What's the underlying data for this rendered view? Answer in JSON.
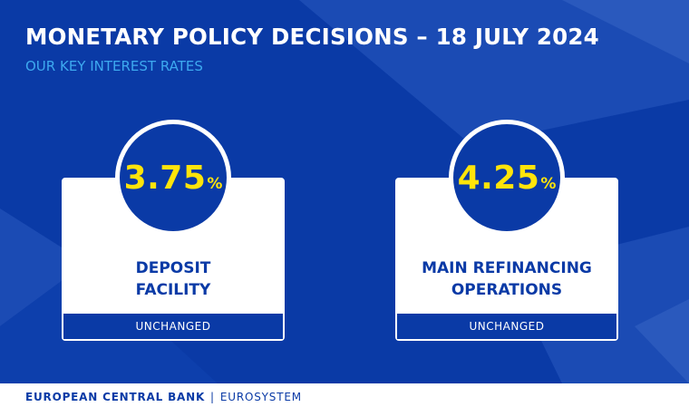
{
  "header": {
    "title": "MONETARY POLICY DECISIONS – 18 JULY 2024",
    "subtitle": "OUR KEY INTEREST RATES"
  },
  "rates": [
    {
      "value": "3.75",
      "unit": "%",
      "label_line1": "DEPOSIT",
      "label_line2": "FACILITY",
      "status": "UNCHANGED"
    },
    {
      "value": "4.25",
      "unit": "%",
      "label_line1": "MAIN REFINANCING",
      "label_line2": "OPERATIONS",
      "status": "UNCHANGED"
    }
  ],
  "footer": {
    "bank": "EUROPEAN CENTRAL BANK",
    "separator": "|",
    "system": "EUROSYSTEM"
  },
  "colors": {
    "background": "#0a3aa6",
    "rate_text": "#ffe40a",
    "subtitle": "#3da9ef",
    "card": "#ffffff"
  }
}
